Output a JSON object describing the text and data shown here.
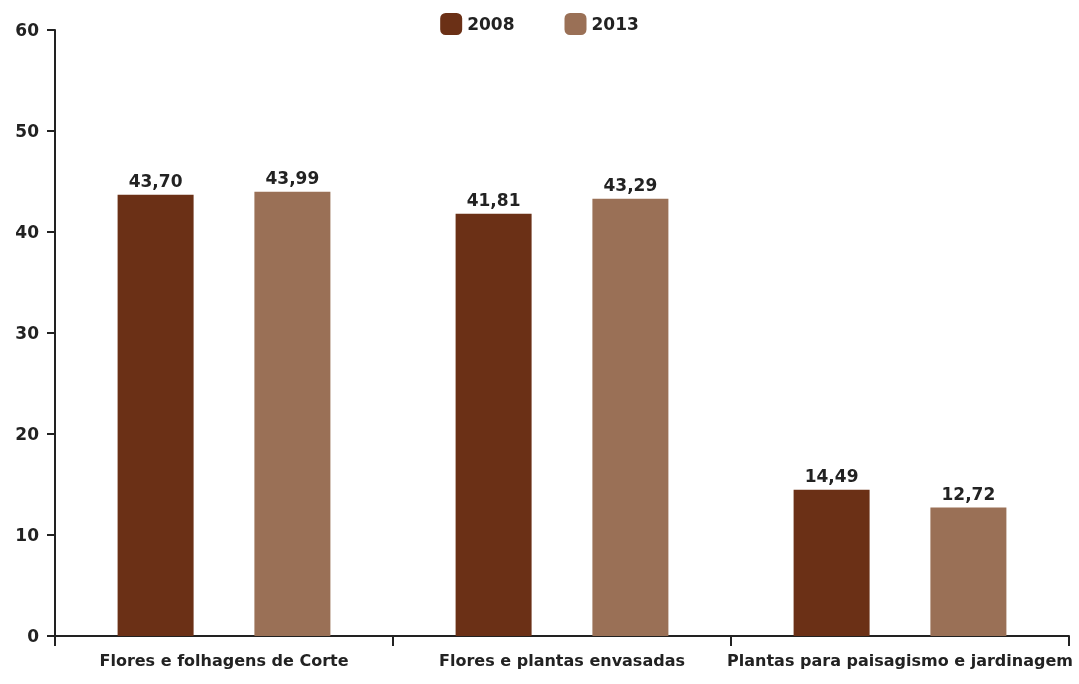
{
  "chart_data": {
    "type": "bar",
    "categories": [
      "Flores e folhagens de Corte",
      "Flores e plantas envasadas",
      "Plantas para paisagismo e jardinagem"
    ],
    "series": [
      {
        "name": "2008",
        "color": "#6b3016",
        "values": [
          43.7,
          41.81,
          14.49
        ],
        "value_labels": [
          "43,70",
          "41,81",
          "14,49"
        ]
      },
      {
        "name": "2013",
        "color": "#9a7056",
        "values": [
          43.99,
          43.29,
          12.72
        ],
        "value_labels": [
          "43,99",
          "43,29",
          "12,72"
        ]
      }
    ],
    "ylim": [
      0,
      60
    ],
    "yticks": [
      0,
      10,
      20,
      30,
      40,
      50,
      60
    ],
    "grid": false,
    "legend": "top"
  }
}
